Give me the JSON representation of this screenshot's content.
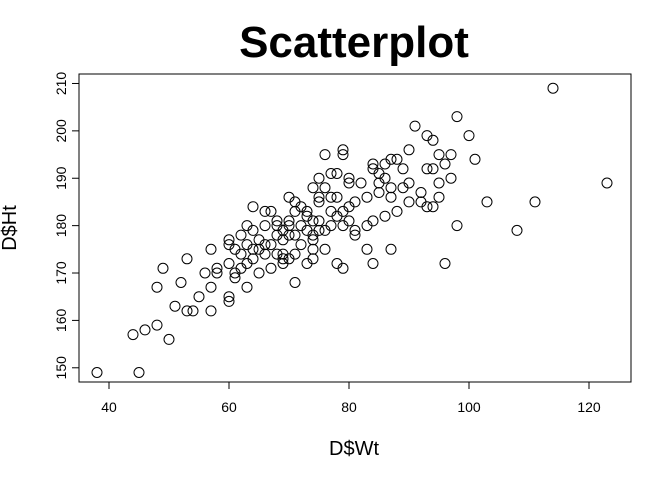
{
  "chart_data": {
    "type": "scatter",
    "title": "Scatterplot",
    "xlabel": "D$Wt",
    "ylabel": "D$Ht",
    "xlim": [
      35,
      127
    ],
    "ylim": [
      147,
      212
    ],
    "xticks": [
      40,
      60,
      80,
      100,
      120
    ],
    "yticks": [
      150,
      160,
      170,
      180,
      190,
      200,
      210
    ],
    "grid": false,
    "legend": "none",
    "marker": "open-circle",
    "x": [
      38,
      44,
      45,
      46,
      48,
      48,
      49,
      50,
      51,
      52,
      53,
      53,
      54,
      55,
      56,
      57,
      57,
      57,
      58,
      58,
      60,
      60,
      60,
      60,
      60,
      61,
      61,
      61,
      62,
      62,
      62,
      63,
      63,
      63,
      63,
      64,
      64,
      64,
      64,
      65,
      65,
      65,
      66,
      66,
      66,
      66,
      67,
      67,
      67,
      68,
      68,
      68,
      68,
      69,
      69,
      69,
      69,
      69,
      70,
      70,
      70,
      70,
      70,
      71,
      71,
      71,
      71,
      71,
      72,
      72,
      72,
      73,
      73,
      73,
      73,
      74,
      74,
      74,
      74,
      74,
      74,
      75,
      75,
      75,
      75,
      75,
      76,
      76,
      76,
      76,
      77,
      77,
      77,
      77,
      78,
      78,
      78,
      78,
      79,
      79,
      79,
      79,
      79,
      80,
      80,
      80,
      80,
      81,
      81,
      81,
      82,
      83,
      83,
      83,
      84,
      84,
      84,
      84,
      85,
      85,
      85,
      86,
      86,
      86,
      87,
      87,
      87,
      87,
      88,
      88,
      89,
      89,
      90,
      90,
      90,
      91,
      92,
      92,
      93,
      93,
      93,
      94,
      94,
      94,
      95,
      95,
      95,
      96,
      96,
      97,
      97,
      98,
      98,
      100,
      101,
      103,
      108,
      111,
      114,
      123
    ],
    "y": [
      149,
      157,
      149,
      158,
      167,
      159,
      171,
      156,
      163,
      168,
      162,
      173,
      162,
      165,
      170,
      162,
      175,
      167,
      170,
      171,
      165,
      172,
      164,
      177,
      176,
      170,
      169,
      175,
      174,
      171,
      178,
      176,
      180,
      172,
      167,
      173,
      175,
      179,
      184,
      177,
      170,
      175,
      174,
      180,
      183,
      176,
      176,
      171,
      183,
      178,
      174,
      180,
      181,
      172,
      177,
      179,
      173,
      174,
      181,
      186,
      180,
      173,
      178,
      178,
      185,
      174,
      168,
      183,
      180,
      176,
      184,
      172,
      179,
      183,
      182,
      177,
      181,
      178,
      175,
      188,
      173,
      181,
      190,
      186,
      179,
      185,
      179,
      175,
      195,
      188,
      191,
      186,
      183,
      180,
      186,
      172,
      182,
      191,
      196,
      183,
      180,
      171,
      195,
      184,
      189,
      181,
      190,
      185,
      178,
      179,
      189,
      186,
      175,
      180,
      193,
      181,
      172,
      192,
      189,
      191,
      187,
      182,
      190,
      193,
      186,
      188,
      194,
      175,
      194,
      183,
      192,
      188,
      196,
      185,
      189,
      201,
      187,
      185,
      192,
      199,
      184,
      192,
      198,
      184,
      186,
      189,
      195,
      172,
      193,
      195,
      190,
      203,
      180,
      199,
      194,
      185,
      179,
      185,
      209,
      189
    ]
  }
}
